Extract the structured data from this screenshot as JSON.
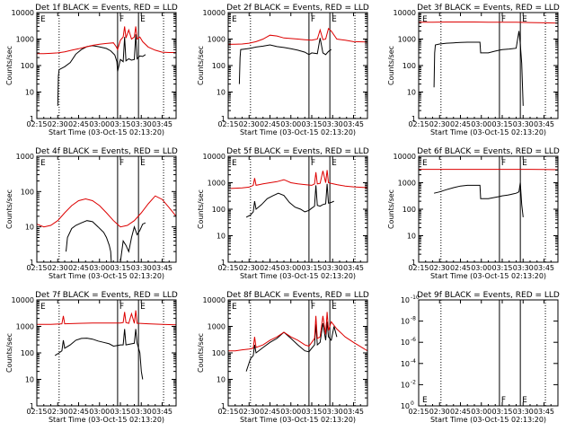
{
  "colors": {
    "events": "#000000",
    "lld": "#dd0000",
    "axis": "#000000",
    "background": "#ffffff"
  },
  "xtick_labels": [
    "02:15",
    "02:30",
    "02:45",
    "03:00",
    "03:15",
    "03:30",
    "03:45"
  ],
  "xtick_minutes": [
    0,
    15,
    30,
    45,
    60,
    75,
    90
  ],
  "xlim_minutes": [
    0,
    100
  ],
  "chart_data": [
    {
      "type": "line",
      "title": "Det 1f BLACK = Events, RED = LLD",
      "xlabel": "Start Time (03-Oct-15 02:13:20)",
      "ylabel": "Counts/sec",
      "y_scale": "log",
      "ylim": [
        1,
        10000
      ],
      "ytick_labels": [
        "1",
        "10",
        "100",
        "1000",
        "10000"
      ],
      "corner_labels": [
        "E",
        "F",
        "E"
      ],
      "dotted_vlines": [
        16,
        91
      ],
      "solid_vlines": [
        58,
        73
      ],
      "series": [
        {
          "name": "Events",
          "color": "#000000",
          "x": [
            15,
            15.5,
            16,
            18,
            20,
            24,
            28,
            32,
            36,
            40,
            44,
            47,
            50,
            53,
            56,
            57.5,
            58,
            60,
            62,
            63,
            64,
            66,
            68,
            70,
            71,
            72,
            74,
            76,
            78
          ],
          "y": [
            3,
            40,
            70,
            80,
            90,
            130,
            270,
            400,
            520,
            560,
            520,
            480,
            440,
            360,
            250,
            140,
            60,
            170,
            140,
            1200,
            150,
            180,
            160,
            170,
            1500,
            180,
            230,
            220,
            260
          ]
        },
        {
          "name": "LLD",
          "color": "#dd0000",
          "x": [
            0,
            5,
            10,
            15,
            20,
            25,
            30,
            35,
            40,
            45,
            50,
            55,
            57,
            58,
            60,
            62,
            63,
            64,
            66,
            68,
            70,
            71,
            72,
            74,
            76,
            80,
            85,
            90,
            95,
            100
          ],
          "y": [
            280,
            280,
            290,
            300,
            330,
            380,
            430,
            500,
            580,
            640,
            680,
            720,
            520,
            400,
            900,
            1200,
            3000,
            1100,
            2200,
            1000,
            1200,
            3000,
            1000,
            1200,
            800,
            500,
            380,
            320,
            310,
            310
          ]
        }
      ]
    },
    {
      "type": "line",
      "title": "Det 2f BLACK = Events, RED = LLD",
      "xlabel": "Start Time (03-Oct-15 02:13:20)",
      "ylabel": "Counts/sec",
      "y_scale": "log",
      "ylim": [
        1,
        10000
      ],
      "ytick_labels": [
        "1",
        "10",
        "100",
        "1000",
        "10000"
      ],
      "corner_labels": [
        "E",
        "F",
        "E"
      ],
      "dotted_vlines": [
        16,
        91
      ],
      "solid_vlines": [
        58,
        73
      ],
      "series": [
        {
          "name": "Events",
          "color": "#000000",
          "x": [
            8,
            8.5,
            9,
            12,
            16,
            20,
            25,
            30,
            35,
            40,
            45,
            50,
            55,
            58,
            60,
            64,
            66,
            68,
            70,
            72,
            74
          ],
          "y": [
            20,
            200,
            400,
            420,
            450,
            500,
            540,
            600,
            520,
            480,
            430,
            380,
            320,
            260,
            300,
            280,
            1100,
            300,
            260,
            340,
            400
          ]
        },
        {
          "name": "LLD",
          "color": "#dd0000",
          "x": [
            0,
            5,
            10,
            15,
            20,
            25,
            30,
            35,
            40,
            45,
            50,
            55,
            60,
            64,
            66,
            68,
            70,
            72,
            74,
            78,
            84,
            90,
            100
          ],
          "y": [
            630,
            640,
            650,
            700,
            800,
            1000,
            1400,
            1300,
            1100,
            1050,
            1000,
            950,
            900,
            1000,
            2200,
            950,
            1000,
            2500,
            2000,
            1000,
            900,
            800,
            780
          ]
        }
      ]
    },
    {
      "type": "line",
      "title": "Det 3f BLACK = Events, RED = LLD",
      "xlabel": "Start Time (03-Oct-15 02:13:20)",
      "ylabel": "Counts/sec",
      "y_scale": "log",
      "ylim": [
        1,
        10000
      ],
      "ytick_labels": [
        "1",
        "10",
        "100",
        "1000",
        "10000"
      ],
      "corner_labels": [
        "E",
        "F",
        "E"
      ],
      "dotted_vlines": [
        16,
        91
      ],
      "solid_vlines": [
        58,
        73
      ],
      "series": [
        {
          "name": "Events",
          "color": "#000000",
          "x": [
            11,
            11.5,
            12,
            15,
            20,
            25,
            30,
            35,
            40,
            44,
            44.5,
            50,
            55,
            58,
            60,
            65,
            70,
            72,
            73,
            74,
            75
          ],
          "y": [
            15,
            300,
            600,
            650,
            700,
            720,
            750,
            760,
            760,
            760,
            300,
            300,
            350,
            380,
            400,
            420,
            450,
            2000,
            650,
            120,
            3
          ]
        },
        {
          "name": "LLD",
          "color": "#dd0000",
          "x": [
            0,
            10,
            20,
            30,
            40,
            50,
            60,
            70,
            80,
            90,
            100
          ],
          "y": [
            4300,
            4350,
            4400,
            4400,
            4400,
            4350,
            4300,
            4300,
            4200,
            4100,
            4000
          ]
        }
      ]
    },
    {
      "type": "line",
      "title": "Det 4f BLACK = Events, RED = LLD",
      "xlabel": "Start Time (03-Oct-15 02:13:20)",
      "ylabel": "Counts/sec",
      "y_scale": "log",
      "ylim": [
        1,
        1000
      ],
      "ytick_labels": [
        "1",
        "10",
        "100",
        "1000"
      ],
      "corner_labels": [
        "E",
        "F",
        "E"
      ],
      "dotted_vlines": [
        16,
        91
      ],
      "solid_vlines": [
        58,
        73
      ],
      "series": [
        {
          "name": "Events",
          "color": "#000000",
          "x": [
            21,
            22,
            25,
            28,
            32,
            36,
            40,
            44,
            48,
            50,
            52,
            53,
            53.5,
            60,
            62,
            64,
            66,
            68,
            70,
            72,
            74,
            76,
            78
          ],
          "y": [
            2,
            5,
            9,
            11,
            13,
            15,
            14,
            10,
            7,
            5,
            3,
            2,
            1,
            1,
            4,
            3,
            2,
            5,
            10,
            6,
            8,
            12,
            13
          ]
        },
        {
          "name": "LLD",
          "color": "#dd0000",
          "x": [
            0,
            5,
            10,
            15,
            20,
            25,
            30,
            35,
            40,
            45,
            50,
            55,
            60,
            65,
            70,
            75,
            80,
            85,
            90,
            95,
            100
          ],
          "y": [
            12,
            10,
            11,
            15,
            25,
            40,
            55,
            62,
            55,
            40,
            25,
            15,
            10,
            11,
            15,
            25,
            45,
            75,
            60,
            35,
            20
          ]
        }
      ]
    },
    {
      "type": "line",
      "title": "Det 5f BLACK = Events, RED = LLD",
      "xlabel": "Start Time (03-Oct-15 02:13:20)",
      "ylabel": "Counts/sec",
      "y_scale": "log",
      "ylim": [
        1,
        10000
      ],
      "ytick_labels": [
        "1",
        "10",
        "100",
        "1000",
        "10000"
      ],
      "corner_labels": [
        "E",
        "F",
        "E"
      ],
      "dotted_vlines": [
        16,
        91
      ],
      "solid_vlines": [
        58,
        73
      ],
      "series": [
        {
          "name": "Events",
          "color": "#000000",
          "x": [
            13,
            16,
            18,
            19,
            20,
            24,
            28,
            32,
            36,
            40,
            44,
            48,
            52,
            55,
            58,
            60,
            62,
            63,
            64,
            66,
            68,
            70,
            71,
            72,
            74,
            76
          ],
          "y": [
            50,
            60,
            80,
            200,
            100,
            150,
            250,
            320,
            400,
            330,
            180,
            120,
            100,
            80,
            90,
            110,
            130,
            800,
            140,
            130,
            150,
            160,
            900,
            170,
            180,
            200
          ]
        },
        {
          "name": "LLD",
          "color": "#dd0000",
          "x": [
            0,
            5,
            10,
            15,
            18,
            19,
            20,
            25,
            30,
            35,
            40,
            45,
            50,
            55,
            60,
            62,
            63,
            64,
            66,
            68,
            70,
            71,
            72,
            74,
            78,
            84,
            90,
            100
          ],
          "y": [
            600,
            620,
            640,
            680,
            800,
            1500,
            800,
            900,
            1000,
            1100,
            1300,
            1000,
            900,
            850,
            800,
            900,
            2500,
            900,
            950,
            2800,
            1000,
            3000,
            1000,
            950,
            850,
            750,
            700,
            650
          ]
        }
      ]
    },
    {
      "type": "line",
      "title": "Det 6f BLACK = Events, RED = LLD",
      "xlabel": "Start Time (03-Oct-15 02:13:20)",
      "ylabel": "Counts/sec",
      "y_scale": "log",
      "ylim": [
        1,
        10000
      ],
      "ytick_labels": [
        "1",
        "10",
        "100",
        "1000",
        "10000"
      ],
      "corner_labels": [
        "E",
        "F",
        "E"
      ],
      "dotted_vlines": [
        16,
        91
      ],
      "solid_vlines": [
        58,
        73
      ],
      "series": [
        {
          "name": "Events",
          "color": "#000000",
          "x": [
            11,
            15,
            20,
            25,
            30,
            35,
            40,
            44,
            44.5,
            50,
            55,
            58,
            60,
            64,
            66,
            68,
            70,
            72,
            73,
            74,
            75
          ],
          "y": [
            400,
            450,
            550,
            650,
            750,
            800,
            800,
            800,
            250,
            250,
            280,
            300,
            320,
            340,
            360,
            380,
            400,
            450,
            1000,
            150,
            50
          ]
        },
        {
          "name": "LLD",
          "color": "#dd0000",
          "x": [
            0,
            10,
            20,
            30,
            40,
            50,
            60,
            70,
            80,
            90,
            100
          ],
          "y": [
            3200,
            3200,
            3200,
            3200,
            3200,
            3200,
            3200,
            3200,
            3200,
            3150,
            3100
          ]
        }
      ]
    },
    {
      "type": "line",
      "title": "Det 7f BLACK = Events, RED = LLD",
      "xlabel": "Start Time (03-Oct-15 02:13:20)",
      "ylabel": "Counts/sec",
      "y_scale": "log",
      "ylim": [
        1,
        10000
      ],
      "ytick_labels": [
        "1",
        "10",
        "100",
        "1000",
        "10000"
      ],
      "corner_labels": [
        "E",
        "F",
        "E"
      ],
      "dotted_vlines": [
        16,
        91
      ],
      "solid_vlines": [
        58,
        73
      ],
      "series": [
        {
          "name": "Events",
          "color": "#000000",
          "x": [
            13,
            16,
            18,
            19,
            20,
            24,
            28,
            32,
            36,
            40,
            44,
            48,
            52,
            55,
            58,
            60,
            62,
            63,
            64,
            66,
            68,
            70,
            71,
            72,
            74,
            75,
            76
          ],
          "y": [
            80,
            100,
            120,
            300,
            150,
            200,
            300,
            350,
            360,
            330,
            280,
            250,
            220,
            180,
            190,
            200,
            200,
            800,
            200,
            210,
            220,
            230,
            800,
            230,
            100,
            20,
            10
          ]
        },
        {
          "name": "LLD",
          "color": "#dd0000",
          "x": [
            0,
            10,
            18,
            19,
            20,
            30,
            40,
            50,
            60,
            62,
            63,
            64,
            66,
            68,
            70,
            71,
            72,
            74,
            80,
            90,
            100
          ],
          "y": [
            1200,
            1200,
            1250,
            2500,
            1250,
            1300,
            1350,
            1350,
            1350,
            1400,
            3500,
            1400,
            1300,
            3000,
            1300,
            4000,
            1300,
            1300,
            1250,
            1200,
            1150
          ]
        }
      ]
    },
    {
      "type": "line",
      "title": "Det 8f BLACK = Events, RED = LLD",
      "xlabel": "Start Time (03-Oct-15 02:13:20)",
      "ylabel": "Counts/sec",
      "y_scale": "log",
      "ylim": [
        1,
        10000
      ],
      "ytick_labels": [
        "1",
        "10",
        "100",
        "1000",
        "10000"
      ],
      "corner_labels": [
        "E",
        "F",
        "E"
      ],
      "dotted_vlines": [
        16,
        91
      ],
      "solid_vlines": [
        58,
        73
      ],
      "series": [
        {
          "name": "Events",
          "color": "#000000",
          "x": [
            13,
            16,
            18,
            19,
            20,
            25,
            30,
            35,
            40,
            45,
            50,
            55,
            58,
            60,
            62,
            63,
            64,
            66,
            68,
            70,
            71,
            72,
            74,
            76,
            78
          ],
          "y": [
            20,
            60,
            80,
            200,
            100,
            160,
            250,
            350,
            600,
            350,
            200,
            120,
            110,
            150,
            200,
            1200,
            200,
            250,
            1300,
            300,
            1500,
            400,
            300,
            1000,
            400
          ]
        },
        {
          "name": "LLD",
          "color": "#dd0000",
          "x": [
            0,
            5,
            10,
            15,
            18,
            19,
            20,
            25,
            30,
            35,
            40,
            45,
            50,
            55,
            58,
            60,
            62,
            63,
            64,
            66,
            68,
            70,
            71,
            72,
            74,
            78,
            84,
            90,
            100
          ],
          "y": [
            120,
            120,
            130,
            140,
            150,
            400,
            160,
            200,
            300,
            400,
            600,
            400,
            300,
            200,
            180,
            250,
            350,
            2500,
            350,
            400,
            2500,
            500,
            3500,
            700,
            1500,
            800,
            400,
            250,
            120
          ]
        }
      ]
    },
    {
      "type": "line",
      "title": "Det 9f BLACK = Events, RED = LLD",
      "xlabel": "Start Time (03-Oct-15 02:13:20)",
      "ylabel": "",
      "y_scale": "log",
      "ylim": [
        1,
        1e-10
      ],
      "ytick_labels": [
        "10",
        "10",
        "10",
        "10",
        "10",
        "10"
      ],
      "ytick_exponents": [
        "0",
        "-2",
        "-4",
        "-6",
        "-8",
        "-10"
      ],
      "corner_labels": [
        "E",
        "F",
        "E"
      ],
      "dotted_vlines": [
        16,
        91
      ],
      "solid_vlines": [
        58,
        73
      ],
      "series": []
    }
  ]
}
